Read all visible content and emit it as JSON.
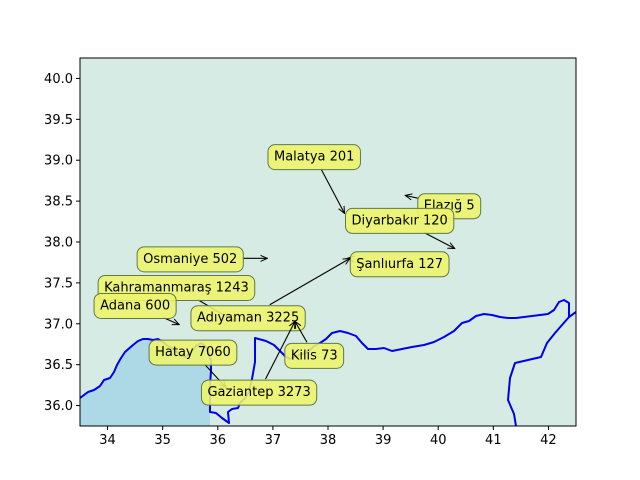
{
  "map": {
    "lon_range": [
      33.5,
      42.5
    ],
    "lat_range": [
      35.75,
      40.25
    ],
    "x_ticks": [
      "34",
      "35",
      "36",
      "37",
      "38",
      "39",
      "40",
      "41",
      "42"
    ],
    "y_ticks": [
      "36.0",
      "36.5",
      "37.0",
      "37.5",
      "38.0",
      "38.5",
      "39.0",
      "39.5",
      "40.0"
    ],
    "colors": {
      "land": "#d6ebe4",
      "sea": "#add8e6",
      "border": "#0000ee",
      "label_fill": "#eef56a",
      "label_edge": "#5f7a45"
    },
    "labels": [
      {
        "text": "Malatya 201",
        "lon": 38.3,
        "lat": 38.35,
        "tlon": 37.75,
        "tlat": 39.05
      },
      {
        "text": "Elazığ 5",
        "lon": 39.4,
        "lat": 38.57,
        "tlon": 40.2,
        "tlat": 38.45
      },
      {
        "text": "Diyarbakır 120",
        "lon": 40.3,
        "lat": 37.92,
        "tlon": 39.3,
        "tlat": 38.27
      },
      {
        "text": "Osmaniye 502",
        "lon": 36.9,
        "lat": 37.8,
        "tlon": 35.5,
        "tlat": 37.8
      },
      {
        "text": "Şanlıurfa 127",
        "lon": 38.35,
        "lat": 37.8,
        "tlon": 39.3,
        "tlat": 37.74
      },
      {
        "text": "Kahramanmaraş 1243",
        "lon": 36.3,
        "lat": 37.03,
        "tlon": 35.25,
        "tlat": 37.45
      },
      {
        "text": "Adana 600",
        "lon": 35.3,
        "lat": 36.99,
        "tlon": 34.5,
        "tlat": 37.23
      },
      {
        "text": "Adıyaman 3225",
        "lon": 38.4,
        "lat": 37.8,
        "tlon": 36.55,
        "tlat": 37.08
      },
      {
        "text": "Hatay 7060",
        "lon": 36.15,
        "lat": 36.22,
        "tlon": 35.55,
        "tlat": 36.66
      },
      {
        "text": "Kilis 73",
        "lon": 37.4,
        "lat": 37.03,
        "tlon": 37.75,
        "tlat": 36.62
      },
      {
        "text": "Gaziantep 3273",
        "lon": 37.4,
        "lat": 37.03,
        "tlon": 36.75,
        "tlat": 36.17
      }
    ]
  }
}
